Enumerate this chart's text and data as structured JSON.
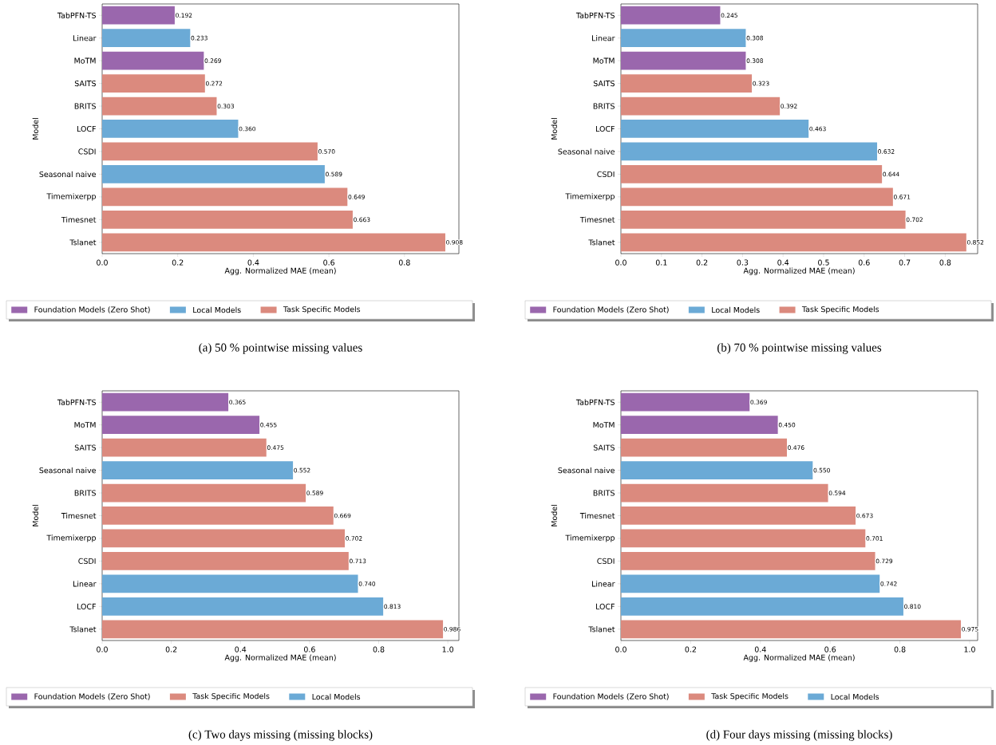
{
  "chart_data": [
    {
      "type": "bar",
      "orientation": "horizontal",
      "title": "(a) 50 % pointwise missing values",
      "xlabel": "Agg. Normalized MAE (mean)",
      "ylabel": "Model",
      "legend": "bottom",
      "categories": [
        "TabPFN-TS",
        "Linear",
        "MoTM",
        "SAITS",
        "BRITS",
        "LOCF",
        "CSDI",
        "Seasonal naive",
        "Timemixerpp",
        "Timesnet",
        "Tslanet"
      ],
      "xlim": [
        0,
        0.944
      ],
      "xticks": [
        {
          "value": 0,
          "label": "0.0"
        },
        {
          "value": 0.2,
          "label": "0.2"
        },
        {
          "value": 0.4,
          "label": "0.4"
        },
        {
          "value": 0.6,
          "label": "0.6"
        },
        {
          "value": 0.8,
          "label": "0.8"
        }
      ],
      "series": [
        {
          "name": "Foundation Models (Zero Shot)",
          "color": "#9a67ad",
          "values": [
            0.192,
            null,
            0.269,
            null,
            null,
            null,
            null,
            null,
            null,
            null,
            null
          ],
          "value_labels": [
            "0.192",
            null,
            "0.269",
            null,
            null,
            null,
            null,
            null,
            null,
            null,
            null
          ]
        },
        {
          "name": "Local Models",
          "color": "#6baad6",
          "values": [
            null,
            0.233,
            null,
            null,
            null,
            0.36,
            null,
            0.589,
            null,
            null,
            null
          ],
          "value_labels": [
            null,
            "0.233",
            null,
            null,
            null,
            "0.360",
            null,
            "0.589",
            null,
            null,
            null
          ]
        },
        {
          "name": "Task Specific Models",
          "color": "#db8a7e",
          "values": [
            null,
            null,
            null,
            0.272,
            0.303,
            null,
            0.57,
            null,
            0.649,
            0.663,
            0.908
          ],
          "value_labels": [
            null,
            null,
            null,
            "0.272",
            "0.303",
            null,
            "0.570",
            null,
            "0.649",
            "0.663",
            "0.908"
          ]
        }
      ]
    },
    {
      "type": "bar",
      "orientation": "horizontal",
      "title": "(b) 70 % pointwise missing values",
      "xlabel": "Agg. Normalized MAE (mean)",
      "ylabel": "Model",
      "legend": "bottom",
      "categories": [
        "TabPFN-TS",
        "Linear",
        "MoTM",
        "SAITS",
        "BRITS",
        "LOCF",
        "Seasonal naive",
        "CSDI",
        "Timemixerpp",
        "Timesnet",
        "Tslanet"
      ],
      "xlim": [
        0,
        0.88
      ],
      "xticks": [
        {
          "value": 0,
          "label": "0.0"
        },
        {
          "value": 0.1,
          "label": "0.1"
        },
        {
          "value": 0.2,
          "label": "0.2"
        },
        {
          "value": 0.3,
          "label": "0.3"
        },
        {
          "value": 0.4,
          "label": "0.4"
        },
        {
          "value": 0.5,
          "label": "0.5"
        },
        {
          "value": 0.6,
          "label": "0.6"
        },
        {
          "value": 0.7,
          "label": "0.7"
        },
        {
          "value": 0.8,
          "label": "0.8"
        }
      ],
      "series": [
        {
          "name": "Foundation Models (Zero Shot)",
          "color": "#9a67ad",
          "values": [
            0.245,
            null,
            0.308,
            null,
            null,
            null,
            null,
            null,
            null,
            null,
            null
          ],
          "value_labels": [
            "0.245",
            null,
            "0.308",
            null,
            null,
            null,
            null,
            null,
            null,
            null,
            null
          ]
        },
        {
          "name": "Local Models",
          "color": "#6baad6",
          "values": [
            null,
            0.308,
            null,
            null,
            null,
            0.463,
            0.632,
            null,
            null,
            null,
            null
          ],
          "value_labels": [
            null,
            "0.308",
            null,
            null,
            null,
            "0.463",
            "0.632",
            null,
            null,
            null,
            null
          ]
        },
        {
          "name": "Task Specific Models",
          "color": "#db8a7e",
          "values": [
            null,
            null,
            null,
            0.323,
            0.392,
            null,
            null,
            0.644,
            0.671,
            0.702,
            0.852
          ],
          "value_labels": [
            null,
            null,
            null,
            "0.323",
            "0.392",
            null,
            null,
            "0.644",
            "0.671",
            "0.702",
            "0.852"
          ]
        }
      ]
    },
    {
      "type": "bar",
      "orientation": "horizontal",
      "title": "(c) Two days missing (missing blocks)",
      "xlabel": "Agg. Normalized MAE (mean)",
      "ylabel": "Model",
      "legend": "bottom",
      "categories": [
        "TabPFN-TS",
        "MoTM",
        "SAITS",
        "Seasonal naive",
        "BRITS",
        "Timesnet",
        "Timemixerpp",
        "CSDI",
        "Linear",
        "LOCF",
        "Tslanet"
      ],
      "xlim": [
        0,
        1.032
      ],
      "xticks": [
        {
          "value": 0,
          "label": "0.0"
        },
        {
          "value": 0.2,
          "label": "0.2"
        },
        {
          "value": 0.4,
          "label": "0.4"
        },
        {
          "value": 0.6,
          "label": "0.6"
        },
        {
          "value": 0.8,
          "label": "0.8"
        },
        {
          "value": 1,
          "label": "1.0"
        }
      ],
      "series": [
        {
          "name": "Foundation Models (Zero Shot)",
          "color": "#9a67ad",
          "values": [
            0.365,
            0.455,
            null,
            null,
            null,
            null,
            null,
            null,
            null,
            null,
            null
          ],
          "value_labels": [
            "0.365",
            "0.455",
            null,
            null,
            null,
            null,
            null,
            null,
            null,
            null,
            null
          ]
        },
        {
          "name": "Task Specific Models",
          "color": "#db8a7e",
          "values": [
            null,
            null,
            0.475,
            null,
            0.589,
            0.669,
            0.702,
            0.713,
            null,
            null,
            0.986
          ],
          "value_labels": [
            null,
            null,
            "0.475",
            null,
            "0.589",
            "0.669",
            "0.702",
            "0.713",
            null,
            null,
            "0.986"
          ]
        },
        {
          "name": "Local Models",
          "color": "#6baad6",
          "values": [
            null,
            null,
            null,
            0.552,
            null,
            null,
            null,
            null,
            0.74,
            0.813,
            null
          ],
          "value_labels": [
            null,
            null,
            null,
            "0.552",
            null,
            null,
            null,
            null,
            "0.740",
            "0.813",
            null
          ]
        }
      ]
    },
    {
      "type": "bar",
      "orientation": "horizontal",
      "title": "(d) Four days missing (missing blocks)",
      "xlabel": "Agg. Normalized MAE (mean)",
      "ylabel": "Model",
      "legend": "bottom",
      "categories": [
        "TabPFN-TS",
        "MoTM",
        "SAITS",
        "Seasonal naive",
        "BRITS",
        "Timesnet",
        "Timemixerpp",
        "CSDI",
        "Linear",
        "LOCF",
        "Tslanet"
      ],
      "xlim": [
        0,
        1.023
      ],
      "xticks": [
        {
          "value": 0,
          "label": "0.0"
        },
        {
          "value": 0.2,
          "label": "0.2"
        },
        {
          "value": 0.4,
          "label": "0.4"
        },
        {
          "value": 0.6,
          "label": "0.6"
        },
        {
          "value": 0.8,
          "label": "0.8"
        },
        {
          "value": 1,
          "label": "1.0"
        }
      ],
      "series": [
        {
          "name": "Foundation Models (Zero Shot)",
          "color": "#9a67ad",
          "values": [
            0.369,
            0.45,
            null,
            null,
            null,
            null,
            null,
            null,
            null,
            null,
            null
          ],
          "value_labels": [
            "0.369",
            "0.450",
            null,
            null,
            null,
            null,
            null,
            null,
            null,
            null,
            null
          ]
        },
        {
          "name": "Task Specific Models",
          "color": "#db8a7e",
          "values": [
            null,
            null,
            0.476,
            null,
            0.594,
            0.673,
            0.701,
            0.729,
            null,
            null,
            0.975
          ],
          "value_labels": [
            null,
            null,
            "0.476",
            null,
            "0.594",
            "0.673",
            "0.701",
            "0.729",
            null,
            null,
            "0.975"
          ]
        },
        {
          "name": "Local Models",
          "color": "#6baad6",
          "values": [
            null,
            null,
            null,
            0.55,
            null,
            null,
            null,
            null,
            0.742,
            0.81,
            null
          ],
          "value_labels": [
            null,
            null,
            null,
            "0.550",
            null,
            null,
            null,
            null,
            "0.742",
            "0.810",
            null
          ]
        }
      ]
    }
  ]
}
